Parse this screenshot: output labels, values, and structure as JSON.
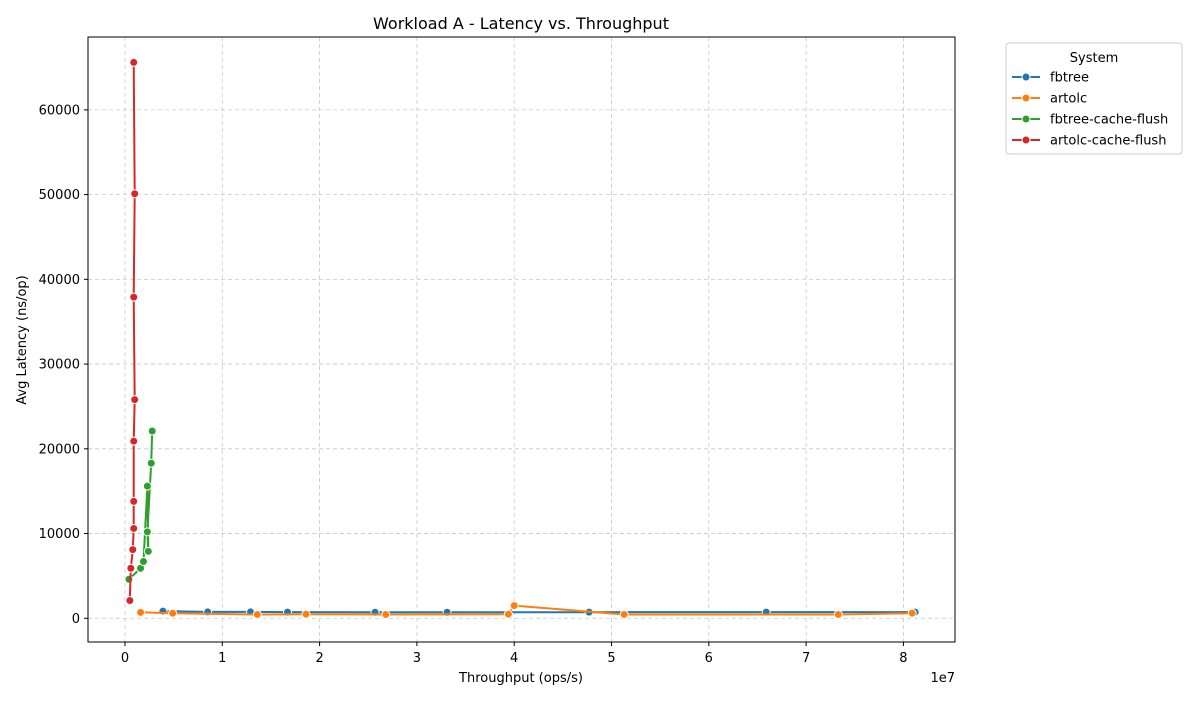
{
  "chart_data": {
    "type": "line",
    "title": "Workload A - Latency vs. Throughput",
    "xlabel": "Throughput (ops/s)",
    "ylabel": "Avg Latency (ns/op)",
    "x_offset_label": "1e7",
    "xlim": [
      -3800000,
      85300000
    ],
    "ylim": [
      -2800,
      68600
    ],
    "x_ticks": [
      0,
      10000000,
      20000000,
      30000000,
      40000000,
      50000000,
      60000000,
      70000000,
      80000000
    ],
    "x_tick_labels": [
      "0",
      "1",
      "2",
      "3",
      "4",
      "5",
      "6",
      "7",
      "8"
    ],
    "y_ticks": [
      0,
      10000,
      20000,
      30000,
      40000,
      50000,
      60000
    ],
    "y_tick_labels": [
      "0",
      "10000",
      "20000",
      "30000",
      "40000",
      "50000",
      "60000"
    ],
    "grid": true,
    "legend_title": "System",
    "legend_position": "outside-top-right",
    "series": [
      {
        "name": "fbtree",
        "color": "#1f77b4",
        "x": [
          3900000,
          8500000,
          12900000,
          16700000,
          25700000,
          33100000,
          47700000,
          65900000,
          81200000
        ],
        "y": [
          850,
          750,
          750,
          730,
          710,
          710,
          720,
          730,
          730
        ]
      },
      {
        "name": "artolc",
        "color": "#ff7f0e",
        "x": [
          1600000,
          4900000,
          13600000,
          18600000,
          26800000,
          39400000,
          40000000,
          51300000,
          73300000,
          80900000
        ],
        "y": [
          700,
          600,
          450,
          480,
          450,
          480,
          1500,
          450,
          450,
          600
        ]
      },
      {
        "name": "fbtree-cache-flush",
        "color": "#2ca02c",
        "x": [
          400000,
          1600000,
          1900000,
          2300000,
          2400000,
          2300000,
          2700000,
          2800000
        ],
        "y": [
          4600,
          5900,
          6700,
          15600,
          7900,
          10200,
          18300,
          22100
        ]
      },
      {
        "name": "artolc-cache-flush",
        "color": "#d62728",
        "x": [
          500000,
          600000,
          800000,
          900000,
          900000,
          900000,
          1000000,
          900000,
          1000000,
          900000
        ],
        "y": [
          2100,
          5900,
          8100,
          10600,
          13800,
          20900,
          25800,
          37900,
          50100,
          65600
        ]
      }
    ]
  }
}
